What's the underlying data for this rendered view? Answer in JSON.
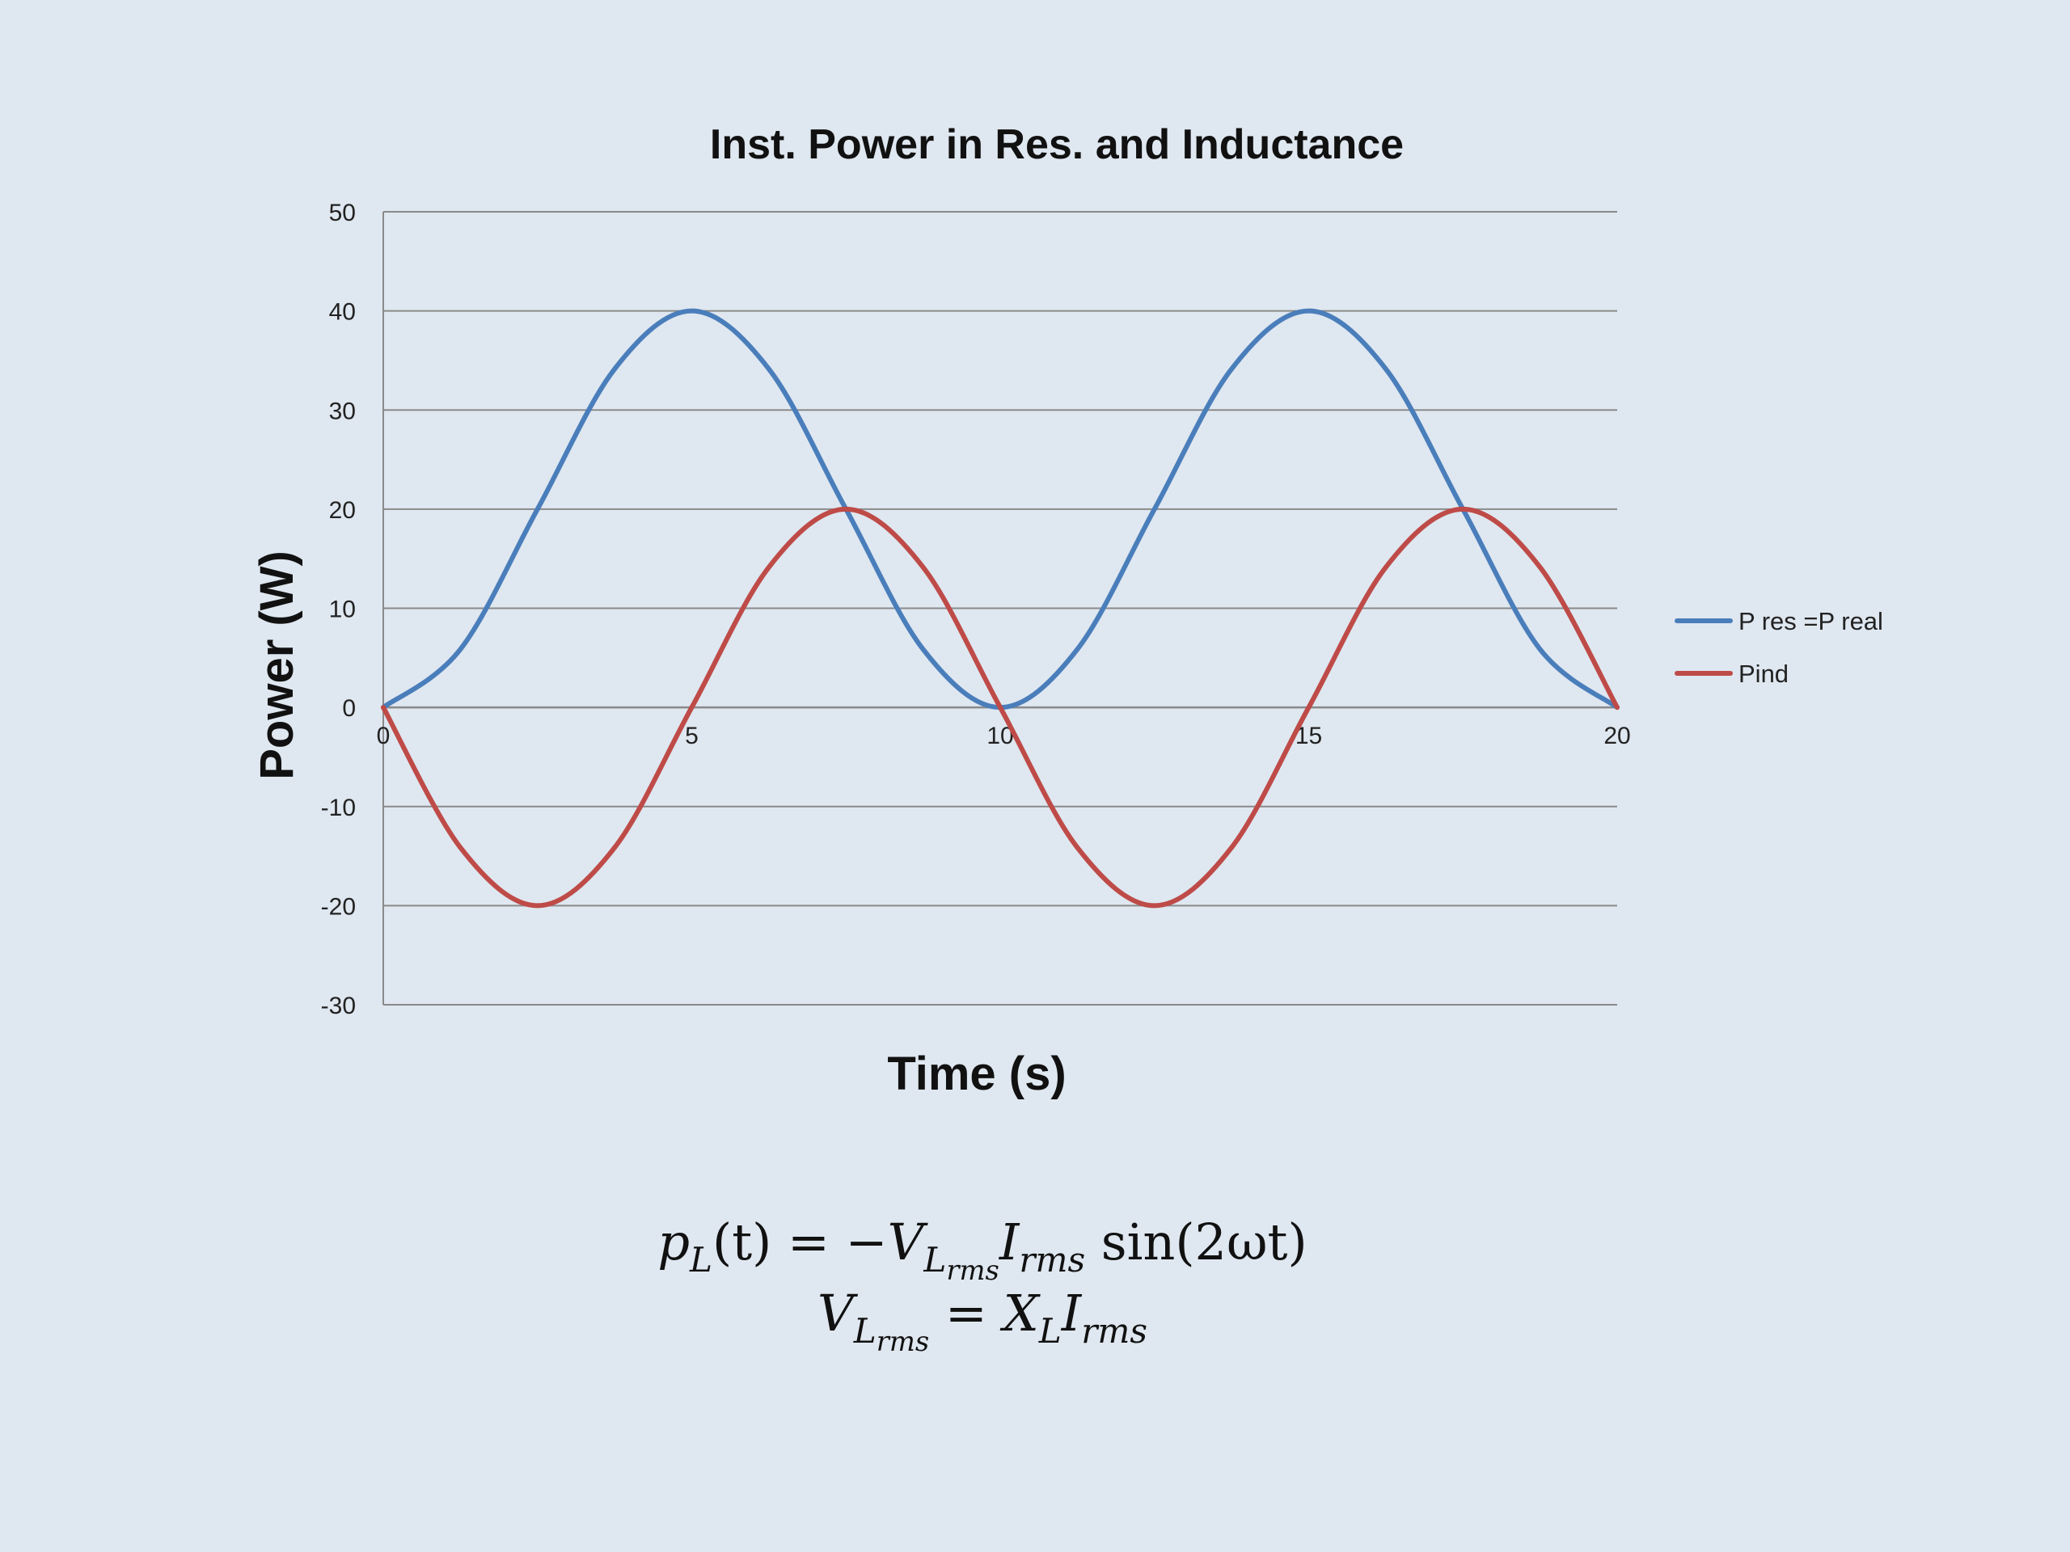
{
  "chart_data": {
    "type": "line",
    "title": "Inst. Power in Res. and Inductance",
    "xlabel": "Time (s)",
    "ylabel": "Power (W)",
    "xlim": [
      0,
      20
    ],
    "ylim": [
      -30,
      50
    ],
    "x_ticks": [
      "0",
      "5",
      "10",
      "15",
      "20"
    ],
    "y_ticks": [
      "50",
      "40",
      "30",
      "20",
      "10",
      "0",
      "-10",
      "-20",
      "-30"
    ],
    "grid": "horizontal",
    "legend": "right",
    "x": [
      0,
      1.25,
      2.5,
      3.75,
      5,
      6.25,
      7.5,
      8.75,
      10,
      11.25,
      12.5,
      13.75,
      15,
      16.25,
      17.5,
      18.75,
      20
    ],
    "series": [
      {
        "name": "P res =P real",
        "color": "#4a7ebb",
        "values": [
          0,
          5.86,
          20,
          34.14,
          40,
          34.14,
          20,
          5.86,
          0,
          5.86,
          20,
          34.14,
          40,
          34.14,
          20,
          5.86,
          0
        ]
      },
      {
        "name": "Pind",
        "color": "#be4b48",
        "values": [
          0,
          -14.14,
          -20,
          -14.14,
          0,
          14.14,
          20,
          14.14,
          0,
          -14.14,
          -20,
          -14.14,
          0,
          14.14,
          20,
          14.14,
          0
        ]
      }
    ]
  },
  "formulas": {
    "line1": {
      "p": "p",
      "p_sub": "L",
      "t_arg": "(t) = −",
      "v": "V",
      "v_sub": "L",
      "v_subsub": "rms",
      "i": "I",
      "i_sub": "rms",
      "tail": " sin(2ωt)"
    },
    "line2": {
      "v": "V",
      "v_sub": "L",
      "v_subsub": "rms",
      "eq": " = ",
      "x": "X",
      "x_sub": "L",
      "i": "I",
      "i_sub": "rms"
    }
  }
}
